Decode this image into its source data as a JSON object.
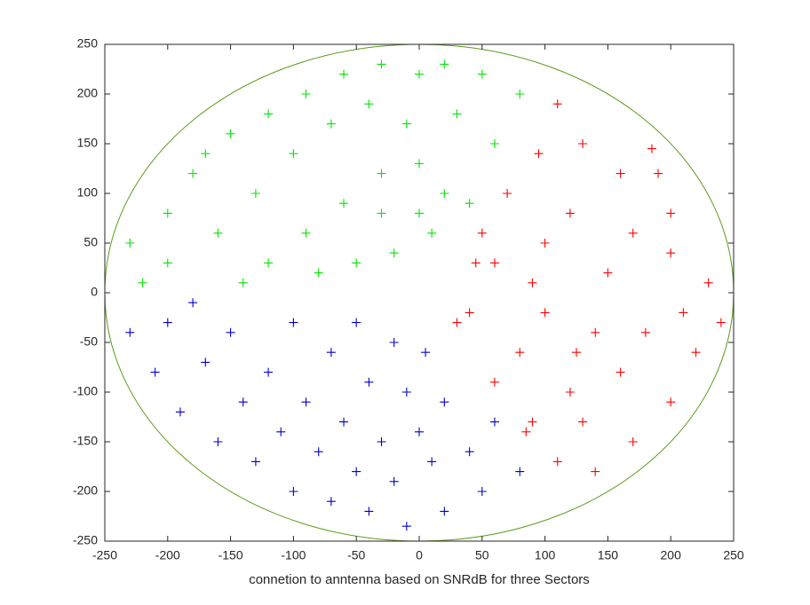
{
  "chart_data": {
    "type": "scatter",
    "xlabel": "connetion to anntenna based on SNRdB for three Sectors",
    "xlim": [
      -250,
      250
    ],
    "ylim": [
      -250,
      250
    ],
    "xticks": [
      -250,
      -200,
      -150,
      -100,
      -50,
      0,
      50,
      100,
      150,
      200,
      250
    ],
    "yticks": [
      -250,
      -200,
      -150,
      -100,
      -50,
      0,
      50,
      100,
      150,
      200,
      250
    ],
    "circle": {
      "radius": 250,
      "color": "#5b9b1b"
    },
    "series": [
      {
        "color": "#ff0000",
        "x": [
          40,
          60,
          80,
          100,
          120,
          150,
          180,
          200,
          210,
          230,
          160,
          130,
          110,
          185,
          90,
          110,
          140,
          170,
          200,
          220,
          70,
          50,
          30,
          90,
          120,
          140,
          170,
          60,
          100,
          200,
          85,
          130,
          240,
          45,
          160,
          190,
          95,
          125
        ],
        "y": [
          -20,
          30,
          -60,
          50,
          -100,
          20,
          -40,
          80,
          -20,
          10,
          120,
          150,
          190,
          145,
          -130,
          -170,
          -180,
          -150,
          -110,
          -60,
          100,
          60,
          -30,
          10,
          80,
          -40,
          60,
          -90,
          -20,
          40,
          -140,
          -130,
          -30,
          30,
          -80,
          120,
          140,
          -60
        ]
      },
      {
        "color": "#00e600",
        "x": [
          -230,
          -220,
          -200,
          -180,
          -150,
          -120,
          -90,
          -60,
          -30,
          0,
          20,
          50,
          80,
          -160,
          -130,
          -100,
          -70,
          -40,
          -10,
          30,
          60,
          -120,
          -90,
          -60,
          -30,
          0,
          20,
          40,
          -50,
          -20,
          10,
          -80,
          -200,
          -170,
          -140,
          -30,
          0
        ],
        "y": [
          50,
          10,
          80,
          120,
          160,
          180,
          200,
          220,
          230,
          220,
          230,
          220,
          200,
          60,
          100,
          140,
          170,
          190,
          170,
          180,
          150,
          30,
          60,
          90,
          120,
          130,
          100,
          90,
          30,
          40,
          60,
          20,
          30,
          140,
          10,
          80,
          80
        ]
      },
      {
        "color": "#0000cc",
        "x": [
          -230,
          -210,
          -190,
          -160,
          -130,
          -100,
          -70,
          -40,
          -10,
          20,
          50,
          80,
          -200,
          -170,
          -140,
          -110,
          -80,
          -50,
          -20,
          10,
          40,
          -150,
          -120,
          -90,
          -60,
          -30,
          0,
          20,
          -100,
          -70,
          -40,
          -10,
          -50,
          -20,
          5,
          -180,
          60
        ],
        "y": [
          -40,
          -80,
          -120,
          -150,
          -170,
          -200,
          -210,
          -220,
          -235,
          -220,
          -200,
          -180,
          -30,
          -70,
          -110,
          -140,
          -160,
          -180,
          -190,
          -170,
          -160,
          -40,
          -80,
          -110,
          -130,
          -150,
          -140,
          -110,
          -30,
          -60,
          -90,
          -100,
          -30,
          -50,
          -60,
          -10,
          -130
        ]
      }
    ]
  }
}
